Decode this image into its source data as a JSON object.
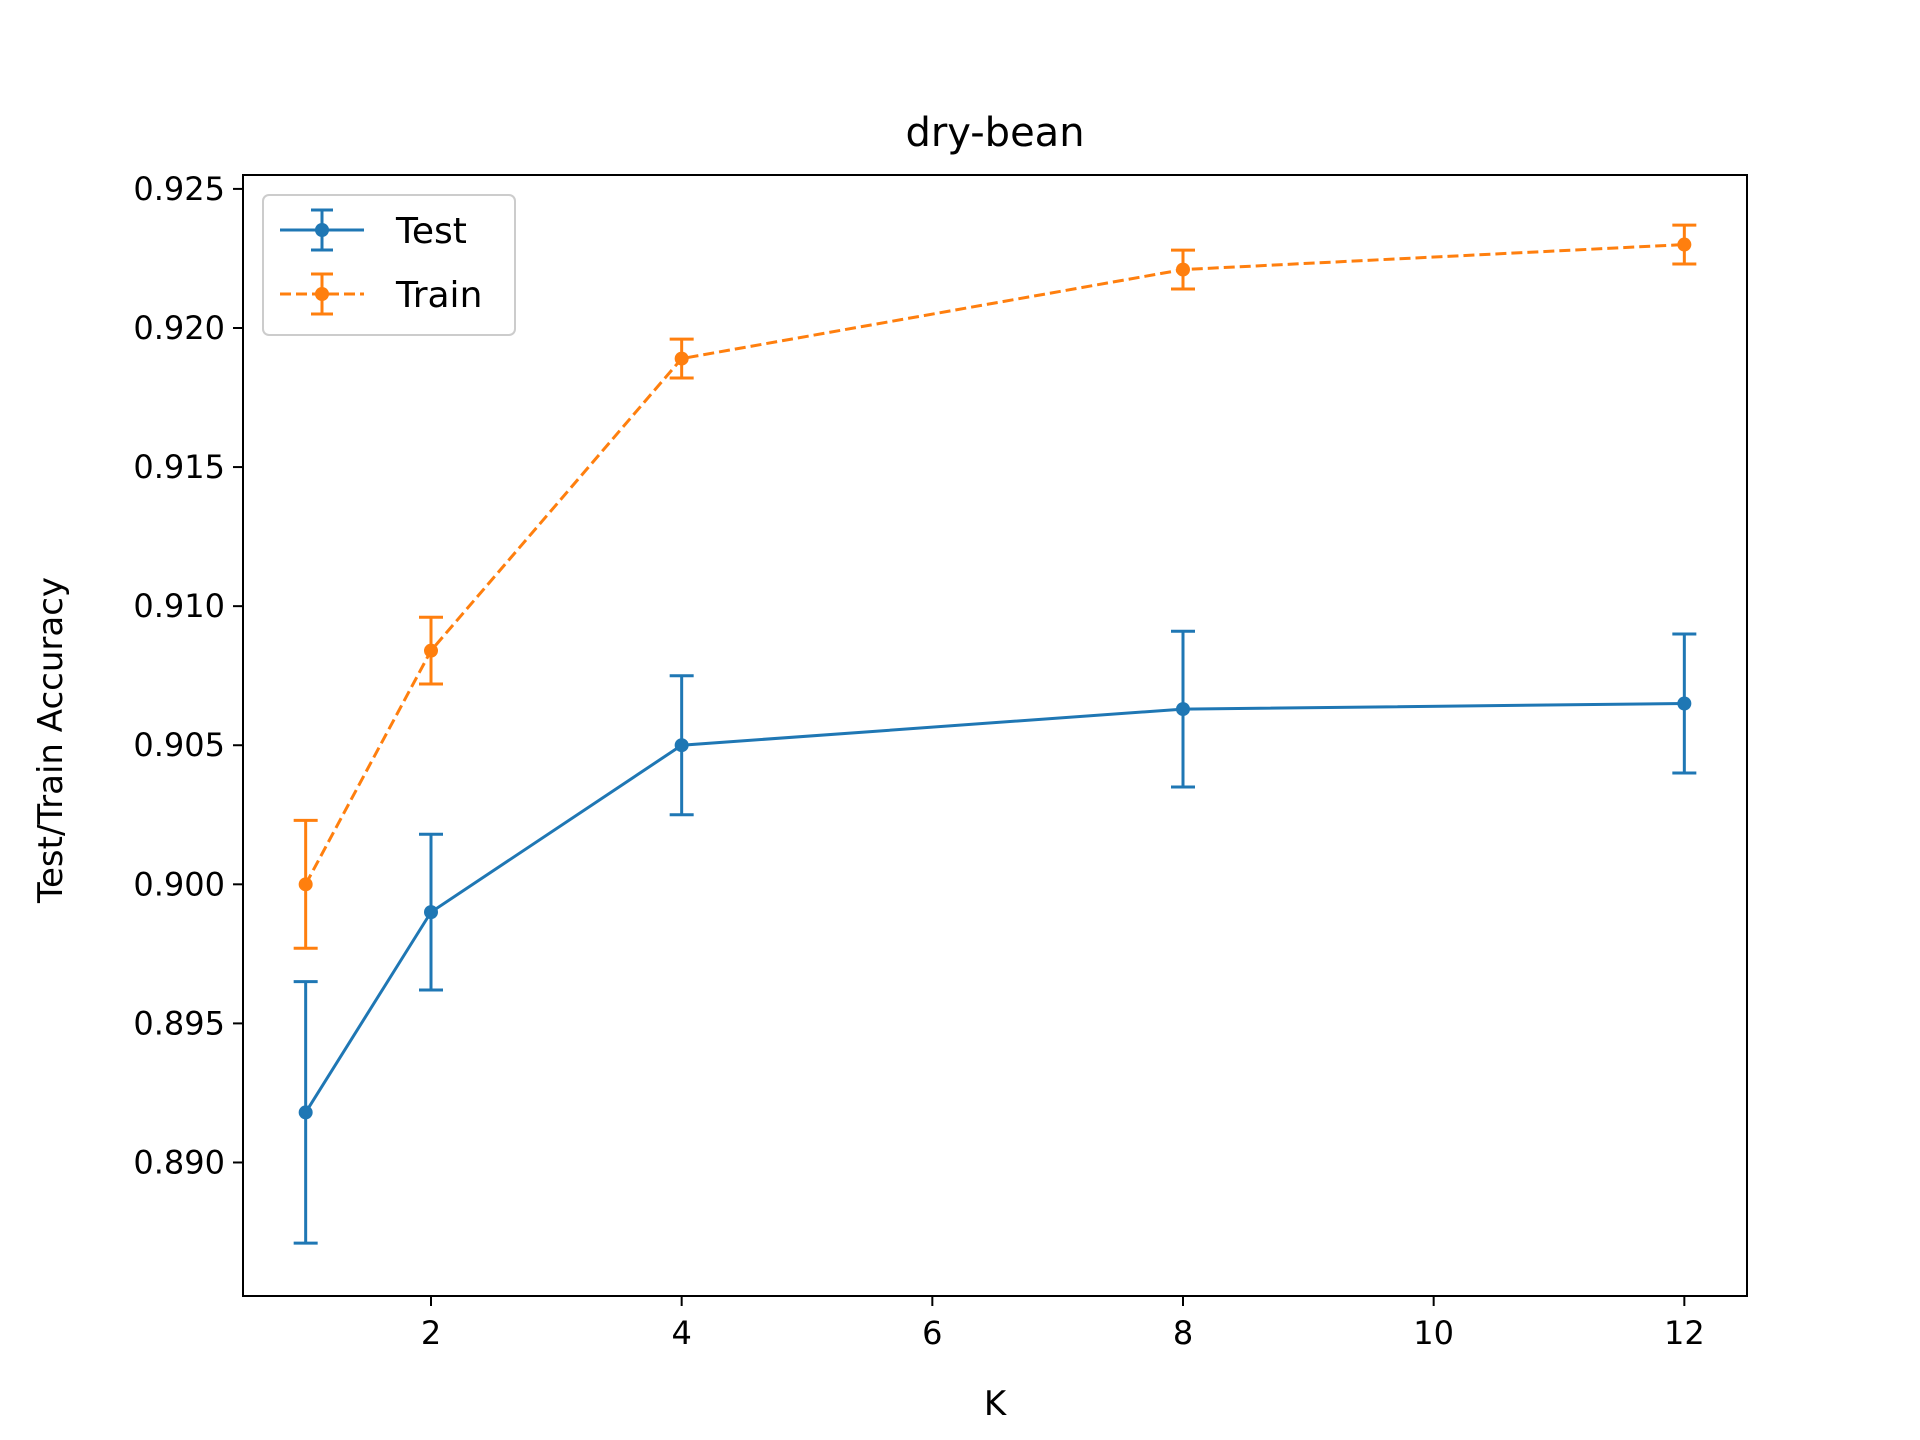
{
  "chart_data": {
    "type": "line",
    "title": "dry-bean",
    "xlabel": "K",
    "ylabel": "Test/Train Accuracy",
    "x": [
      1,
      2,
      4,
      8,
      12
    ],
    "xlim": [
      0.5,
      12.5
    ],
    "ylim": [
      0.8852,
      0.9255
    ],
    "xticks": [
      2,
      4,
      6,
      8,
      10,
      12
    ],
    "xtick_labels": [
      "2",
      "4",
      "6",
      "8",
      "10",
      "12"
    ],
    "yticks": [
      0.89,
      0.895,
      0.9,
      0.905,
      0.91,
      0.915,
      0.92,
      0.925
    ],
    "ytick_labels": [
      "0.890",
      "0.895",
      "0.900",
      "0.905",
      "0.910",
      "0.915",
      "0.920",
      "0.925"
    ],
    "grid": false,
    "legend_position": "upper-left",
    "series": [
      {
        "name": "Test",
        "values": [
          0.8918,
          0.899,
          0.905,
          0.9063,
          0.9065
        ],
        "errors": [
          0.0047,
          0.0028,
          0.0025,
          0.0028,
          0.0025
        ],
        "color": "#1f77b4",
        "line_style": "solid"
      },
      {
        "name": "Train",
        "values": [
          0.9,
          0.9084,
          0.9189,
          0.9221,
          0.923
        ],
        "errors": [
          0.0023,
          0.0012,
          0.0007,
          0.0007,
          0.0007
        ],
        "color": "#ff7f0e",
        "line_style": "dashed"
      }
    ]
  }
}
